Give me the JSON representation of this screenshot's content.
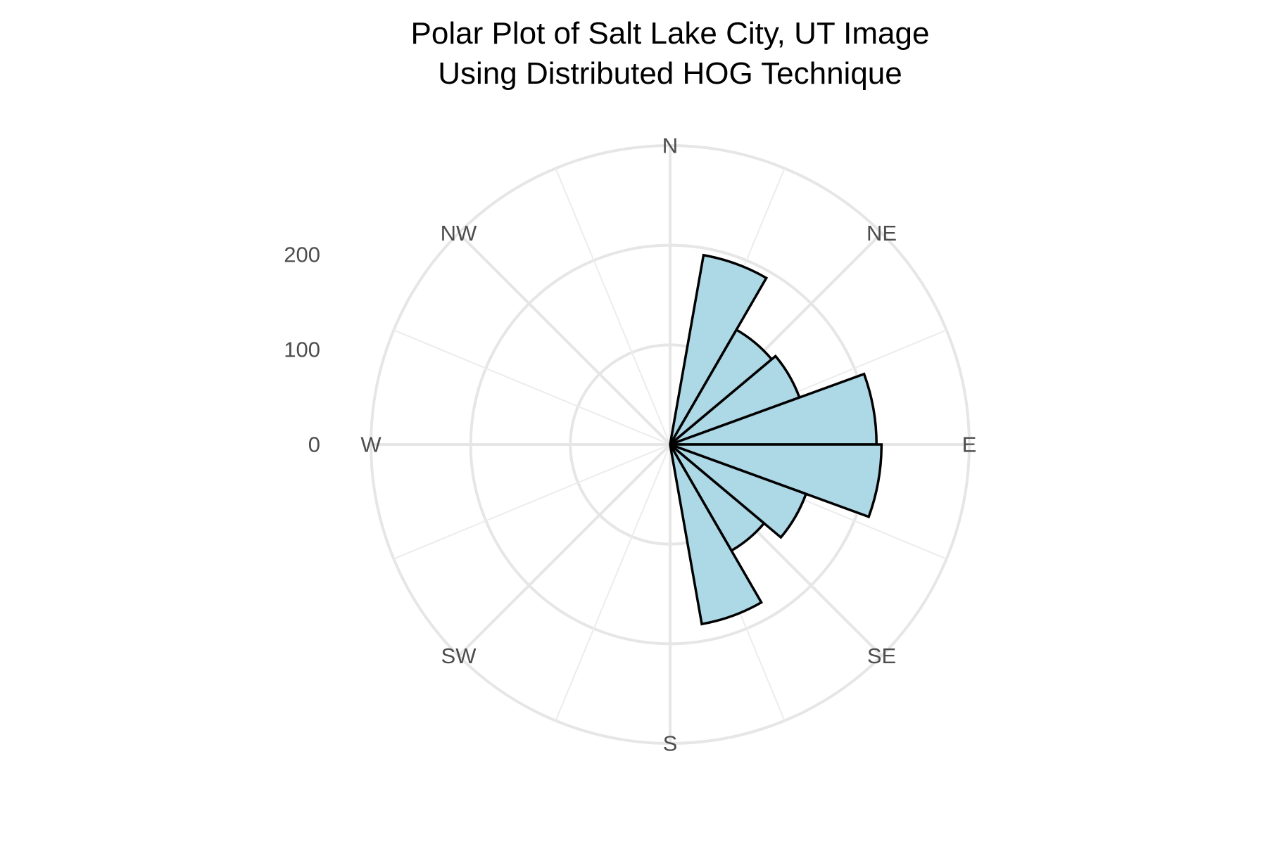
{
  "chart_data": {
    "type": "polar-bar",
    "title_lines": [
      "Polar Plot of Salt Lake City, UT Image",
      "Using Distributed HOG Technique"
    ],
    "directions": [
      "N",
      "NE",
      "E",
      "SE",
      "S",
      "SW",
      "W",
      "NW"
    ],
    "radial_ticks": [
      "0",
      "100",
      "200"
    ],
    "radial_tick_values": [
      0,
      100,
      200
    ],
    "r_max": 300,
    "bar_width_deg": 20,
    "bar_fill": "#add8e6",
    "bar_stroke": "#000000",
    "bars": [
      {
        "angle_deg": 20,
        "value": 193
      },
      {
        "angle_deg": 40,
        "value": 133
      },
      {
        "angle_deg": 60,
        "value": 138
      },
      {
        "angle_deg": 80,
        "value": 207
      },
      {
        "angle_deg": 100,
        "value": 212
      },
      {
        "angle_deg": 120,
        "value": 145
      },
      {
        "angle_deg": 140,
        "value": 123
      },
      {
        "angle_deg": 160,
        "value": 183
      }
    ]
  }
}
